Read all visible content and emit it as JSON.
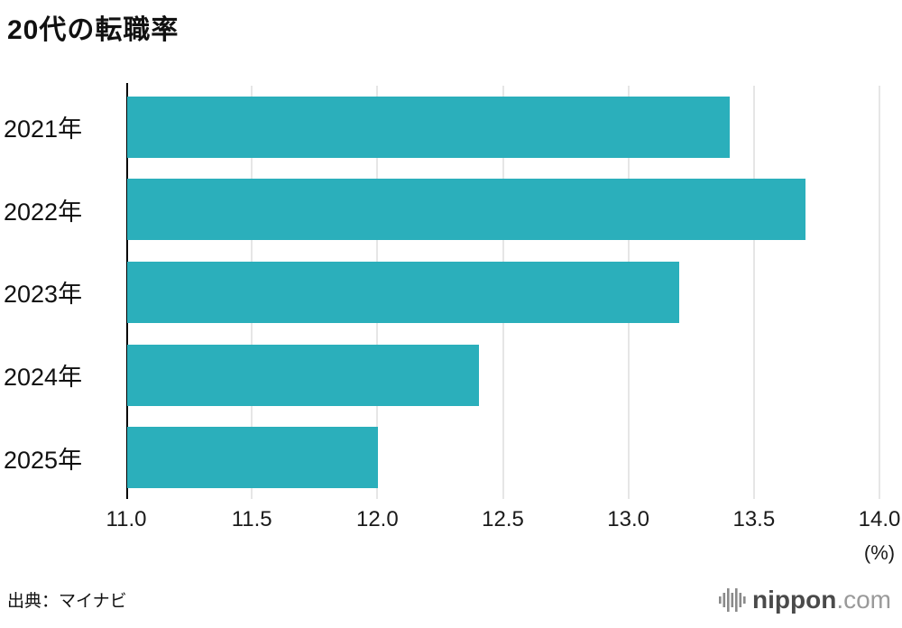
{
  "title": "20代の転職率",
  "source": "出典：マイナビ",
  "footer": {
    "brand_main": "nippon",
    "brand_suffix": ".com",
    "brand_icon": "soundwave-icon",
    "icon_color": "#8a8a8a"
  },
  "chart_data": {
    "type": "bar",
    "orientation": "horizontal",
    "title": "20代の転職率",
    "categories": [
      "2021年",
      "2022年",
      "2023年",
      "2024年",
      "2025年"
    ],
    "values": [
      13.4,
      13.7,
      13.2,
      12.4,
      12.0
    ],
    "xlabel": "(%)",
    "ylabel": "",
    "xlim": [
      11.0,
      14.0
    ],
    "xticks": [
      11.0,
      11.5,
      12.0,
      12.5,
      13.0,
      13.5,
      14.0
    ],
    "xtick_labels": [
      "11.0",
      "11.5",
      "12.0",
      "12.5",
      "13.0",
      "13.5",
      "14.0"
    ],
    "bar_color": "#2bafbb",
    "grid": true,
    "gridline_color": "#cccccc",
    "legend": "none"
  }
}
